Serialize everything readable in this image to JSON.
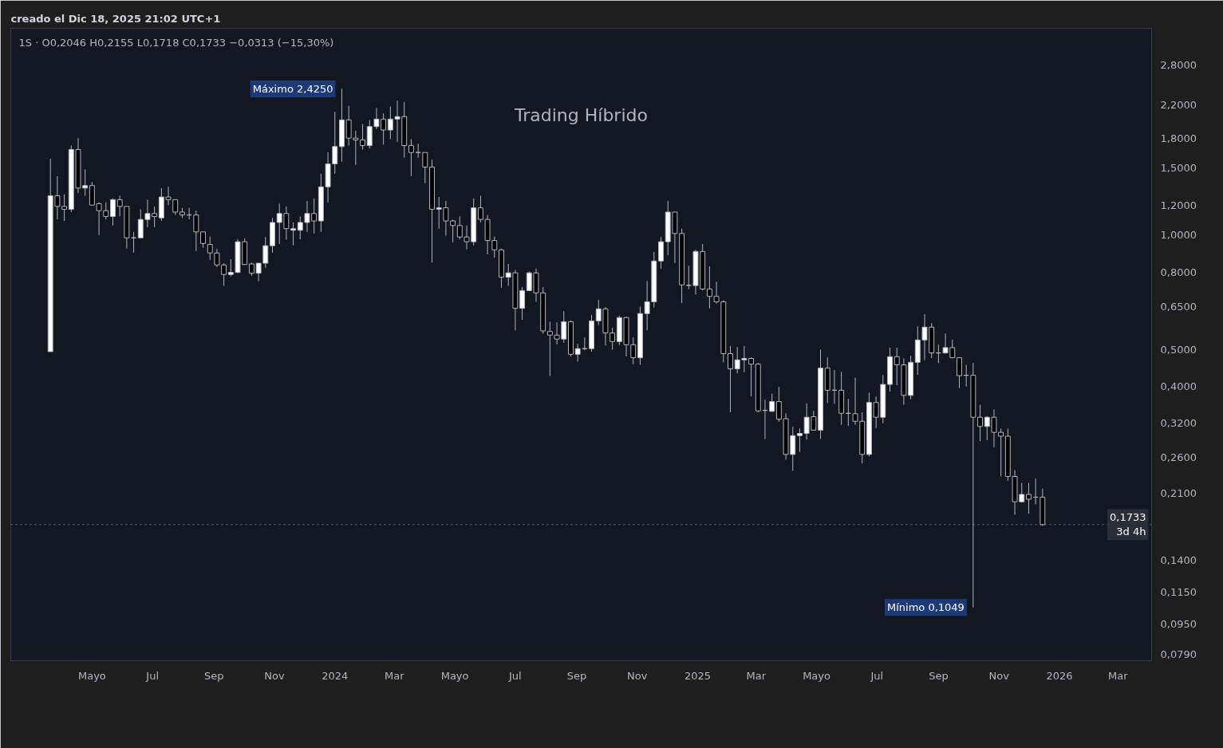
{
  "chart_data": {
    "type": "candlestick",
    "title": "1S · O0,2046 H0,2155 L0,1718 C0,1733 −0,0313 (−15,30%)",
    "subtitle": "Trading Híbrido",
    "x": [
      "2023-03-20",
      "2023-03-27",
      "2023-04-03",
      "2023-04-10",
      "2023-04-17",
      "2023-04-24",
      "2023-05-01",
      "2023-05-08",
      "2023-05-15",
      "2023-05-22",
      "2023-05-29",
      "2023-06-05",
      "2023-06-12",
      "2023-06-19",
      "2023-06-26",
      "2023-07-03",
      "2023-07-10",
      "2023-07-17",
      "2023-07-24",
      "2023-07-31",
      "2023-08-07",
      "2023-08-14",
      "2023-08-21",
      "2023-08-28",
      "2023-09-04",
      "2023-09-11",
      "2023-09-18",
      "2023-09-25",
      "2023-10-02",
      "2023-10-09",
      "2023-10-16",
      "2023-10-23",
      "2023-10-30",
      "2023-11-06",
      "2023-11-13",
      "2023-11-20",
      "2023-11-27",
      "2023-12-04",
      "2023-12-11",
      "2023-12-18",
      "2023-12-25",
      "2024-01-01",
      "2024-01-08",
      "2024-01-15",
      "2024-01-22",
      "2024-01-29",
      "2024-02-05",
      "2024-02-12",
      "2024-02-19",
      "2024-02-26",
      "2024-03-04",
      "2024-03-11",
      "2024-03-18",
      "2024-03-25",
      "2024-04-01",
      "2024-04-08",
      "2024-04-15",
      "2024-04-22",
      "2024-04-29",
      "2024-05-06",
      "2024-05-13",
      "2024-05-20",
      "2024-05-27",
      "2024-06-03",
      "2024-06-10",
      "2024-06-17",
      "2024-06-24",
      "2024-07-01",
      "2024-07-08",
      "2024-07-15",
      "2024-07-22",
      "2024-07-29",
      "2024-08-05",
      "2024-08-12",
      "2024-08-19",
      "2024-08-26",
      "2024-09-02",
      "2024-09-09",
      "2024-09-16",
      "2024-09-23",
      "2024-09-30",
      "2024-10-07",
      "2024-10-14",
      "2024-10-21",
      "2024-10-28",
      "2024-11-04",
      "2024-11-11",
      "2024-11-18",
      "2024-11-25",
      "2024-12-02",
      "2024-12-09",
      "2024-12-16",
      "2024-12-23",
      "2024-12-30",
      "2025-01-06",
      "2025-01-13",
      "2025-01-20",
      "2025-01-27",
      "2025-02-03",
      "2025-02-10",
      "2025-02-17",
      "2025-02-24",
      "2025-03-03",
      "2025-03-10",
      "2025-03-17",
      "2025-03-24",
      "2025-03-31",
      "2025-04-07",
      "2025-04-14",
      "2025-04-21",
      "2025-04-28",
      "2025-05-05",
      "2025-05-12",
      "2025-05-19",
      "2025-05-26",
      "2025-06-02",
      "2025-06-09",
      "2025-06-16",
      "2025-06-23",
      "2025-06-30",
      "2025-07-07",
      "2025-07-14",
      "2025-07-21",
      "2025-07-28",
      "2025-08-04",
      "2025-08-11",
      "2025-08-18",
      "2025-08-25",
      "2025-09-01",
      "2025-09-08",
      "2025-09-15",
      "2025-09-22",
      "2025-09-29",
      "2025-10-06",
      "2025-10-13",
      "2025-10-20",
      "2025-10-27",
      "2025-11-03",
      "2025-11-10",
      "2025-11-17",
      "2025-11-24",
      "2025-12-01",
      "2025-12-08",
      "2025-12-15"
    ],
    "ohlc": [
      [
        0.494,
        1.59,
        0.494,
        1.27
      ],
      [
        1.27,
        1.43,
        1.1,
        1.19
      ],
      [
        1.19,
        1.28,
        1.09,
        1.17
      ],
      [
        1.17,
        1.72,
        1.15,
        1.68
      ],
      [
        1.68,
        1.8,
        1.29,
        1.33
      ],
      [
        1.33,
        1.49,
        1.27,
        1.35
      ],
      [
        1.35,
        1.38,
        1.2,
        1.2
      ],
      [
        1.21,
        1.22,
        1.0,
        1.16
      ],
      [
        1.16,
        1.22,
        1.1,
        1.12
      ],
      [
        1.12,
        1.25,
        1.06,
        1.24
      ],
      [
        1.24,
        1.27,
        1.12,
        1.19
      ],
      [
        1.19,
        1.19,
        0.922,
        0.984
      ],
      [
        0.984,
        1.02,
        0.9,
        0.984
      ],
      [
        0.984,
        1.17,
        0.981,
        1.1
      ],
      [
        1.1,
        1.24,
        1.05,
        1.14
      ],
      [
        1.14,
        1.19,
        1.05,
        1.12
      ],
      [
        1.11,
        1.33,
        1.09,
        1.26
      ],
      [
        1.26,
        1.34,
        1.2,
        1.24
      ],
      [
        1.24,
        1.24,
        1.13,
        1.15
      ],
      [
        1.15,
        1.18,
        1.11,
        1.13
      ],
      [
        1.13,
        1.18,
        1.1,
        1.13
      ],
      [
        1.13,
        1.16,
        0.908,
        1.02
      ],
      [
        1.02,
        1.02,
        0.927,
        0.951
      ],
      [
        0.945,
        0.992,
        0.861,
        0.898
      ],
      [
        0.898,
        0.92,
        0.824,
        0.835
      ],
      [
        0.835,
        0.844,
        0.736,
        0.788
      ],
      [
        0.788,
        0.865,
        0.779,
        0.798
      ],
      [
        0.798,
        0.976,
        0.794,
        0.961
      ],
      [
        0.961,
        0.981,
        0.836,
        0.837
      ],
      [
        0.84,
        0.847,
        0.781,
        0.794
      ],
      [
        0.794,
        0.845,
        0.757,
        0.844
      ],
      [
        0.844,
        0.989,
        0.821,
        0.938
      ],
      [
        0.938,
        1.11,
        0.9,
        1.08
      ],
      [
        1.08,
        1.21,
        0.948,
        1.14
      ],
      [
        1.14,
        1.19,
        0.973,
        1.04
      ],
      [
        1.03,
        1.08,
        0.94,
        1.04
      ],
      [
        1.03,
        1.12,
        0.976,
        1.08
      ],
      [
        1.08,
        1.23,
        1.02,
        1.14
      ],
      [
        1.14,
        1.25,
        1.01,
        1.09
      ],
      [
        1.09,
        1.45,
        1.02,
        1.34
      ],
      [
        1.34,
        1.65,
        1.22,
        1.54
      ],
      [
        1.54,
        2.11,
        1.45,
        1.71
      ],
      [
        1.71,
        2.425,
        1.56,
        2.01
      ],
      [
        2.01,
        2.19,
        1.72,
        1.8
      ],
      [
        1.8,
        1.88,
        1.53,
        1.78
      ],
      [
        1.78,
        1.96,
        1.68,
        1.72
      ],
      [
        1.72,
        2.01,
        1.69,
        1.93
      ],
      [
        1.93,
        2.16,
        1.9,
        2.02
      ],
      [
        2.02,
        2.09,
        1.73,
        1.89
      ],
      [
        1.89,
        2.18,
        1.79,
        2.02
      ],
      [
        2.02,
        2.26,
        1.76,
        2.05
      ],
      [
        2.05,
        2.24,
        1.6,
        1.72
      ],
      [
        1.72,
        1.79,
        1.43,
        1.65
      ],
      [
        1.65,
        1.74,
        1.6,
        1.65
      ],
      [
        1.65,
        1.65,
        1.37,
        1.51
      ],
      [
        1.51,
        1.58,
        0.848,
        1.17
      ],
      [
        1.17,
        1.26,
        1.04,
        1.18
      ],
      [
        1.18,
        1.23,
        0.997,
        1.09
      ],
      [
        1.09,
        1.1,
        0.957,
        1.06
      ],
      [
        1.06,
        1.12,
        0.976,
        0.989
      ],
      [
        0.989,
        1.06,
        0.918,
        0.961
      ],
      [
        0.961,
        1.25,
        0.94,
        1.18
      ],
      [
        1.18,
        1.27,
        1.08,
        1.1
      ],
      [
        1.1,
        1.13,
        0.89,
        0.968
      ],
      [
        0.968,
        0.992,
        0.872,
        0.915
      ],
      [
        0.915,
        0.922,
        0.728,
        0.775
      ],
      [
        0.775,
        0.84,
        0.736,
        0.796
      ],
      [
        0.796,
        0.81,
        0.562,
        0.642
      ],
      [
        0.642,
        0.73,
        0.599,
        0.715
      ],
      [
        0.715,
        0.802,
        0.713,
        0.796
      ],
      [
        0.796,
        0.817,
        0.668,
        0.705
      ],
      [
        0.705,
        0.73,
        0.551,
        0.56
      ],
      [
        0.558,
        0.592,
        0.426,
        0.546
      ],
      [
        0.546,
        0.59,
        0.516,
        0.533
      ],
      [
        0.533,
        0.632,
        0.521,
        0.592
      ],
      [
        0.592,
        0.597,
        0.48,
        0.486
      ],
      [
        0.486,
        0.518,
        0.465,
        0.503
      ],
      [
        0.503,
        0.538,
        0.498,
        0.503
      ],
      [
        0.503,
        0.617,
        0.494,
        0.595
      ],
      [
        0.595,
        0.676,
        0.58,
        0.64
      ],
      [
        0.64,
        0.647,
        0.512,
        0.553
      ],
      [
        0.553,
        0.571,
        0.5,
        0.525
      ],
      [
        0.525,
        0.614,
        0.514,
        0.607
      ],
      [
        0.607,
        0.61,
        0.48,
        0.515
      ],
      [
        0.515,
        0.538,
        0.458,
        0.476
      ],
      [
        0.476,
        0.649,
        0.456,
        0.622
      ],
      [
        0.622,
        0.758,
        0.562,
        0.668
      ],
      [
        0.668,
        0.903,
        0.645,
        0.855
      ],
      [
        0.855,
        0.989,
        0.817,
        0.961
      ],
      [
        0.961,
        1.23,
        0.886,
        1.15
      ],
      [
        1.15,
        1.15,
        0.844,
        1.01
      ],
      [
        1.01,
        1.04,
        0.663,
        0.74
      ],
      [
        0.738,
        0.831,
        0.721,
        0.738
      ],
      [
        0.737,
        0.915,
        0.699,
        0.906
      ],
      [
        0.906,
        0.948,
        0.715,
        0.722
      ],
      [
        0.722,
        0.828,
        0.642,
        0.69
      ],
      [
        0.69,
        0.754,
        0.661,
        0.668
      ],
      [
        0.668,
        0.674,
        0.463,
        0.488
      ],
      [
        0.488,
        0.511,
        0.342,
        0.445
      ],
      [
        0.445,
        0.508,
        0.433,
        0.47
      ],
      [
        0.47,
        0.511,
        0.436,
        0.474
      ],
      [
        0.474,
        0.477,
        0.377,
        0.458
      ],
      [
        0.458,
        0.461,
        0.342,
        0.345
      ],
      [
        0.346,
        0.369,
        0.291,
        0.346
      ],
      [
        0.344,
        0.383,
        0.343,
        0.365
      ],
      [
        0.365,
        0.399,
        0.323,
        0.328
      ],
      [
        0.329,
        0.34,
        0.257,
        0.265
      ],
      [
        0.265,
        0.313,
        0.24,
        0.297
      ],
      [
        0.297,
        0.31,
        0.269,
        0.301
      ],
      [
        0.301,
        0.361,
        0.29,
        0.332
      ],
      [
        0.333,
        0.345,
        0.307,
        0.307
      ],
      [
        0.307,
        0.5,
        0.291,
        0.447
      ],
      [
        0.447,
        0.477,
        0.362,
        0.391
      ],
      [
        0.391,
        0.442,
        0.36,
        0.391
      ],
      [
        0.391,
        0.437,
        0.317,
        0.34
      ],
      [
        0.34,
        0.371,
        0.315,
        0.34
      ],
      [
        0.339,
        0.422,
        0.317,
        0.324
      ],
      [
        0.324,
        0.342,
        0.251,
        0.265
      ],
      [
        0.265,
        0.385,
        0.262,
        0.363
      ],
      [
        0.363,
        0.376,
        0.311,
        0.332
      ],
      [
        0.332,
        0.429,
        0.32,
        0.405
      ],
      [
        0.405,
        0.506,
        0.388,
        0.479
      ],
      [
        0.479,
        0.506,
        0.403,
        0.456
      ],
      [
        0.456,
        0.474,
        0.358,
        0.379
      ],
      [
        0.379,
        0.482,
        0.37,
        0.463
      ],
      [
        0.463,
        0.576,
        0.429,
        0.53
      ],
      [
        0.53,
        0.62,
        0.469,
        0.573
      ],
      [
        0.573,
        0.587,
        0.475,
        0.49
      ],
      [
        0.49,
        0.515,
        0.461,
        0.49
      ],
      [
        0.49,
        0.551,
        0.488,
        0.506
      ],
      [
        0.506,
        0.531,
        0.475,
        0.476
      ],
      [
        0.476,
        0.477,
        0.396,
        0.427
      ],
      [
        0.428,
        0.456,
        0.4,
        0.428
      ],
      [
        0.428,
        0.461,
        0.1049,
        0.332
      ],
      [
        0.332,
        0.358,
        0.287,
        0.314
      ],
      [
        0.314,
        0.334,
        0.289,
        0.332
      ],
      [
        0.332,
        0.348,
        0.277,
        0.303
      ],
      [
        0.303,
        0.31,
        0.232,
        0.296
      ],
      [
        0.296,
        0.31,
        0.226,
        0.232
      ],
      [
        0.232,
        0.241,
        0.184,
        0.199
      ],
      [
        0.199,
        0.223,
        0.198,
        0.208
      ],
      [
        0.208,
        0.223,
        0.185,
        0.202
      ],
      [
        0.2046,
        0.229,
        0.196,
        0.2046
      ],
      [
        0.2046,
        0.2155,
        0.1718,
        0.1733
      ]
    ],
    "colors": [
      "#ffffff",
      "#000000",
      "#000000",
      "#ffffff",
      "#000000",
      "#ffffff",
      "#000000",
      "#000000",
      "#000000",
      "#ffffff",
      "#000000",
      "#000000",
      "#b2b5be",
      "#ffffff",
      "#ffffff",
      "#000000",
      "#ffffff",
      "#000000",
      "#000000",
      "#000000",
      "#b2b5be",
      "#000000",
      "#000000",
      "#000000",
      "#000000",
      "#000000",
      "#ffffff",
      "#ffffff",
      "#000000",
      "#000000",
      "#ffffff",
      "#ffffff",
      "#ffffff",
      "#ffffff",
      "#000000",
      "#ffffff",
      "#ffffff",
      "#ffffff",
      "#000000",
      "#ffffff",
      "#ffffff",
      "#ffffff",
      "#ffffff",
      "#000000",
      "#000000",
      "#000000",
      "#ffffff",
      "#ffffff",
      "#000000",
      "#ffffff",
      "#ffffff",
      "#000000",
      "#000000",
      "#b2b5be",
      "#000000",
      "#000000",
      "#ffffff",
      "#000000",
      "#000000",
      "#000000",
      "#000000",
      "#ffffff",
      "#000000",
      "#000000",
      "#000000",
      "#000000",
      "#ffffff",
      "#000000",
      "#ffffff",
      "#ffffff",
      "#000000",
      "#000000",
      "#000000",
      "#000000",
      "#ffffff",
      "#000000",
      "#ffffff",
      "#b2b5be",
      "#ffffff",
      "#ffffff",
      "#000000",
      "#000000",
      "#ffffff",
      "#000000",
      "#000000",
      "#ffffff",
      "#ffffff",
      "#ffffff",
      "#ffffff",
      "#ffffff",
      "#000000",
      "#000000",
      "#b2b5be",
      "#ffffff",
      "#000000",
      "#000000",
      "#000000",
      "#000000",
      "#000000",
      "#ffffff",
      "#ffffff",
      "#000000",
      "#000000",
      "#b2b5be",
      "#ffffff",
      "#000000",
      "#000000",
      "#ffffff",
      "#ffffff",
      "#ffffff",
      "#000000",
      "#ffffff",
      "#000000",
      "#b2b5be",
      "#000000",
      "#b2b5be",
      "#000000",
      "#000000",
      "#ffffff",
      "#000000",
      "#ffffff",
      "#ffffff",
      "#000000",
      "#000000",
      "#ffffff",
      "#ffffff",
      "#ffffff",
      "#000000",
      "#b2b5be",
      "#ffffff",
      "#000000",
      "#000000",
      "#b2b5be",
      "#000000",
      "#000000",
      "#ffffff",
      "#000000",
      "#000000",
      "#000000",
      "#000000",
      "#ffffff",
      "#000000",
      "#b2b5be",
      "#000000"
    ],
    "color": "#b2b5be",
    "log": true,
    "xlim": [
      "2023-02-08",
      "2026-04-04"
    ],
    "xticks": [
      {
        "value": "2023-05-01",
        "label": "Mayo"
      },
      {
        "value": "2023-07-01",
        "label": "Jul"
      },
      {
        "value": "2023-09-01",
        "label": "Sep"
      },
      {
        "value": "2023-11-01",
        "label": "Nov"
      },
      {
        "value": "2024-01-01",
        "label": "2024"
      },
      {
        "value": "2024-03-01",
        "label": "Mar"
      },
      {
        "value": "2024-05-01",
        "label": "Mayo"
      },
      {
        "value": "2024-07-01",
        "label": "Jul"
      },
      {
        "value": "2024-09-01",
        "label": "Sep"
      },
      {
        "value": "2024-11-01",
        "label": "Nov"
      },
      {
        "value": "2025-01-01",
        "label": "2025"
      },
      {
        "value": "2025-03-01",
        "label": "Mar"
      },
      {
        "value": "2025-05-01",
        "label": "Mayo"
      },
      {
        "value": "2025-07-01",
        "label": "Jul"
      },
      {
        "value": "2025-09-01",
        "label": "Sep"
      },
      {
        "value": "2025-11-01",
        "label": "Nov"
      },
      {
        "value": "2026-01-01",
        "label": "2026"
      },
      {
        "value": "2026-03-01",
        "label": "Mar"
      }
    ],
    "ylim": [
      0.076,
      3.5
    ],
    "yticks": [
      {
        "value": 2.8,
        "label": "2,8000"
      },
      {
        "value": 2.2,
        "label": "2,2000"
      },
      {
        "value": 1.8,
        "label": "1,8000"
      },
      {
        "value": 1.5,
        "label": "1,5000"
      },
      {
        "value": 1.2,
        "label": "1,2000"
      },
      {
        "value": 1.0,
        "label": "1,0000"
      },
      {
        "value": 0.8,
        "label": "0,8000"
      },
      {
        "value": 0.65,
        "label": "0,6500"
      },
      {
        "value": 0.5,
        "label": "0,5000"
      },
      {
        "value": 0.4,
        "label": "0,4000"
      },
      {
        "value": 0.32,
        "label": "0,3200"
      },
      {
        "value": 0.26,
        "label": "0,2600"
      },
      {
        "value": 0.21,
        "label": "0,2100"
      },
      {
        "value": 0.14,
        "label": "0,1400"
      },
      {
        "value": 0.115,
        "label": "0,1150"
      },
      {
        "value": 0.095,
        "label": "0,0950"
      },
      {
        "value": 0.079,
        "label": "0,0790"
      }
    ],
    "ref_lines": [
      {
        "axis": "y",
        "value": 0.1733,
        "label": "0,1733\n3d 4h",
        "line_style": "dotted",
        "color": "#787b86"
      }
    ],
    "annotations": [
      "creado el Dic 18, 2025 21:02 UTC+1",
      {
        "text": "Máximo 2,4250",
        "x": "2024-01-08",
        "y": 2.425
      },
      {
        "text": "Mínimo 0,1049",
        "x": "2025-10-06",
        "y": 0.1049
      }
    ]
  }
}
